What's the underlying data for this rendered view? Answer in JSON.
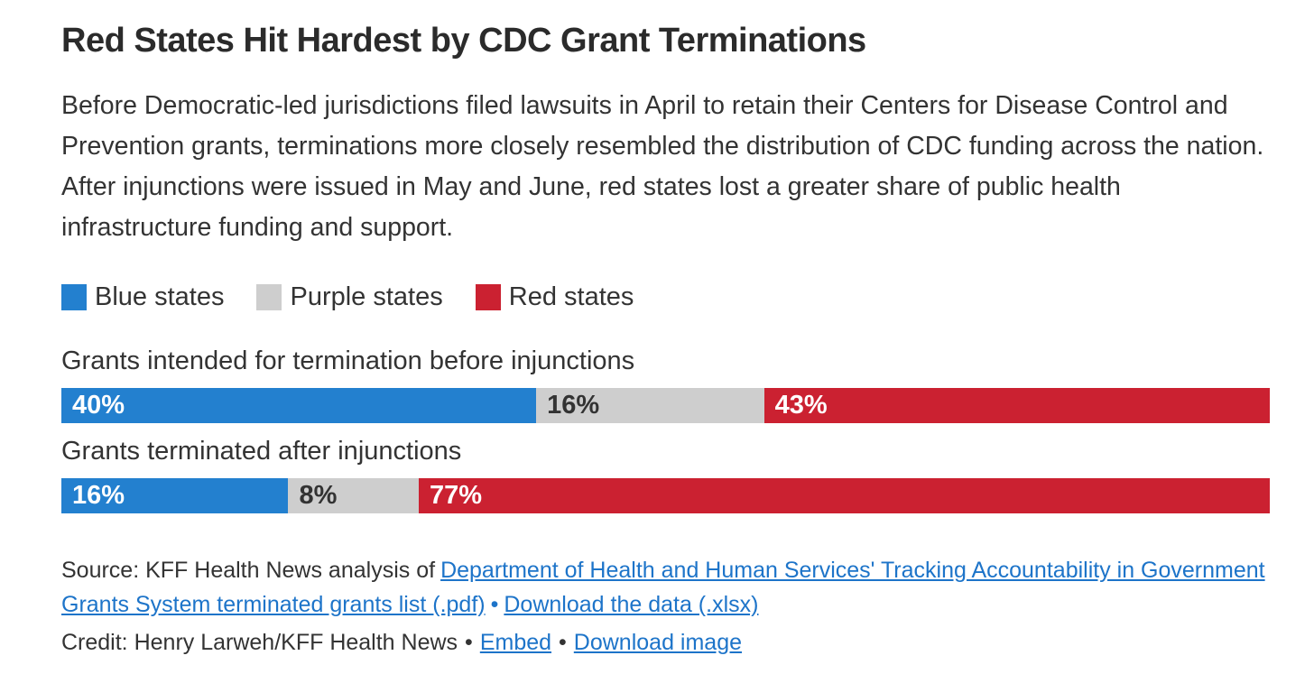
{
  "title": "Red States Hit Hardest by CDC Grant Terminations",
  "description": "Before Democratic-led jurisdictions filed lawsuits in April to retain their Centers for Disease Control and Prevention grants, terminations more closely resembled the distribution of CDC funding across the nation. After injunctions were issued in May and June, red states lost a greater share of public health infrastructure funding and support.",
  "colors": {
    "background": "#ffffff",
    "title_text": "#2b2b2b",
    "body_text": "#333333",
    "blue_states": "#2380cf",
    "purple_states": "#cecece",
    "red_states": "#cb2131",
    "link": "#1d74c9"
  },
  "chart_data": {
    "type": "bar",
    "stacked": true,
    "orientation": "horizontal",
    "unit": "percent",
    "legend_position": "top",
    "categories": [
      "Grants intended for termination before injunctions",
      "Grants terminated after injunctions"
    ],
    "series": [
      {
        "name": "Blue states",
        "color": "#2380cf",
        "values": [
          40,
          16
        ],
        "labels": [
          "40%",
          "16%"
        ]
      },
      {
        "name": "Purple states",
        "color": "#cecece",
        "values": [
          16,
          8
        ],
        "labels": [
          "16%",
          "8%"
        ]
      },
      {
        "name": "Red states",
        "color": "#cb2131",
        "values": [
          43,
          77
        ],
        "labels": [
          "43%",
          "77%"
        ]
      }
    ]
  },
  "source": {
    "prefix": "Source: KFF Health News analysis of",
    "link_pdf": "Department of Health and Human Services' Tracking Accountability in Government Grants System terminated grants list (.pdf)",
    "bullet": "•",
    "link_xlsx": "Download the data (.xlsx)"
  },
  "credit": {
    "text": "Credit: Henry Larweh/KFF Health News",
    "bullet1": "•",
    "embed": "Embed",
    "bullet2": "•",
    "download": "Download image"
  }
}
